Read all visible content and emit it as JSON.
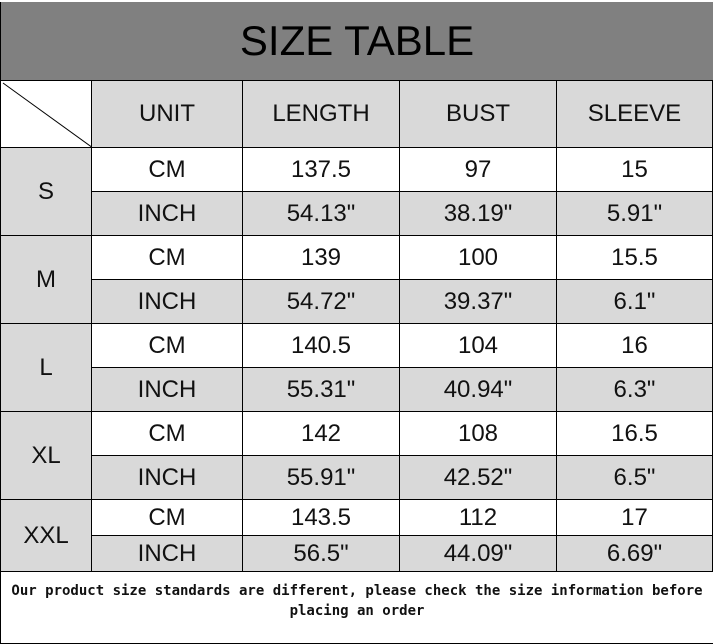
{
  "title": "SIZE TABLE",
  "headers": [
    "UNIT",
    "LENGTH",
    "BUST",
    "SLEEVE"
  ],
  "sizes": [
    {
      "size": "S",
      "rows": [
        [
          "CM",
          "137.5",
          "97",
          "15"
        ],
        [
          "INCH",
          "54.13\"",
          "38.19\"",
          "5.91\""
        ]
      ]
    },
    {
      "size": "M",
      "rows": [
        [
          "CM",
          "139",
          "100",
          "15.5"
        ],
        [
          "INCH",
          "54.72\"",
          "39.37\"",
          "6.1\""
        ]
      ]
    },
    {
      "size": "L",
      "rows": [
        [
          "CM",
          "140.5",
          "104",
          "16"
        ],
        [
          "INCH",
          "55.31\"",
          "40.94\"",
          "6.3\""
        ]
      ]
    },
    {
      "size": "XL",
      "rows": [
        [
          "CM",
          "142",
          "108",
          "16.5"
        ],
        [
          "INCH",
          "55.91\"",
          "42.52\"",
          "6.5\""
        ]
      ]
    },
    {
      "size": "XXL",
      "rows": [
        [
          "CM",
          "143.5",
          "112",
          "17"
        ],
        [
          "INCH",
          "56.5\"",
          "44.09\"",
          "6.69\""
        ]
      ]
    }
  ],
  "footer_note": "Our product size standards are different, please check the size information before placing an order",
  "colors": {
    "title_bg": "#808080",
    "cell_gray": "#d9d9d9"
  }
}
